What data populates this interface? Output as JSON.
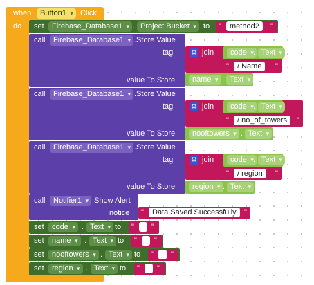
{
  "event": {
    "when": "when",
    "component": "Button1",
    "event": ".Click",
    "do": "do"
  },
  "set_bucket": {
    "set": "set",
    "component": "Firebase_Database1",
    "property": "Project Bucket",
    "to": "to",
    "value": "method2"
  },
  "store_calls": [
    {
      "call": "call",
      "component": "Firebase_Database1",
      "method": ".Store Value",
      "tag_label": "tag",
      "join": "join",
      "tag_component": "code",
      "tag_property": "Text",
      "tag_string": "/ Name",
      "value_label": "value To Store",
      "value_component": "name",
      "value_property": "Text"
    },
    {
      "call": "call",
      "component": "Firebase_Database1",
      "method": ".Store Value",
      "tag_label": "tag",
      "join": "join",
      "tag_component": "code",
      "tag_property": "Text",
      "tag_string": "/ no_of_towers",
      "value_label": "value To Store",
      "value_component": "nooftowers",
      "value_property": "Text"
    },
    {
      "call": "call",
      "component": "Firebase_Database1",
      "method": ".Store Value",
      "tag_label": "tag",
      "join": "join",
      "tag_component": "code",
      "tag_property": "Text",
      "tag_string": "/ region",
      "value_label": "value To Store",
      "value_component": "region",
      "value_property": "Text"
    }
  ],
  "notifier": {
    "call": "call",
    "component": "Notifier1",
    "method": ".Show Alert",
    "notice_label": "notice",
    "message": "Data Saved Successfully"
  },
  "clear_sets": [
    {
      "set": "set",
      "component": "code",
      "property": "Text",
      "to": "to",
      "value": ""
    },
    {
      "set": "set",
      "component": "name",
      "property": "Text",
      "to": "to",
      "value": ""
    },
    {
      "set": "set",
      "component": "nooftowers",
      "property": "Text",
      "to": "to",
      "value": ""
    },
    {
      "set": "set",
      "component": "region",
      "property": "Text",
      "to": "to",
      "value": ""
    }
  ],
  "colors": {
    "control": "#f7a91c",
    "component": "#3f6e2c",
    "method": "#5c3fa8",
    "text": "#c2185b",
    "join_text": "#8bc34a"
  }
}
